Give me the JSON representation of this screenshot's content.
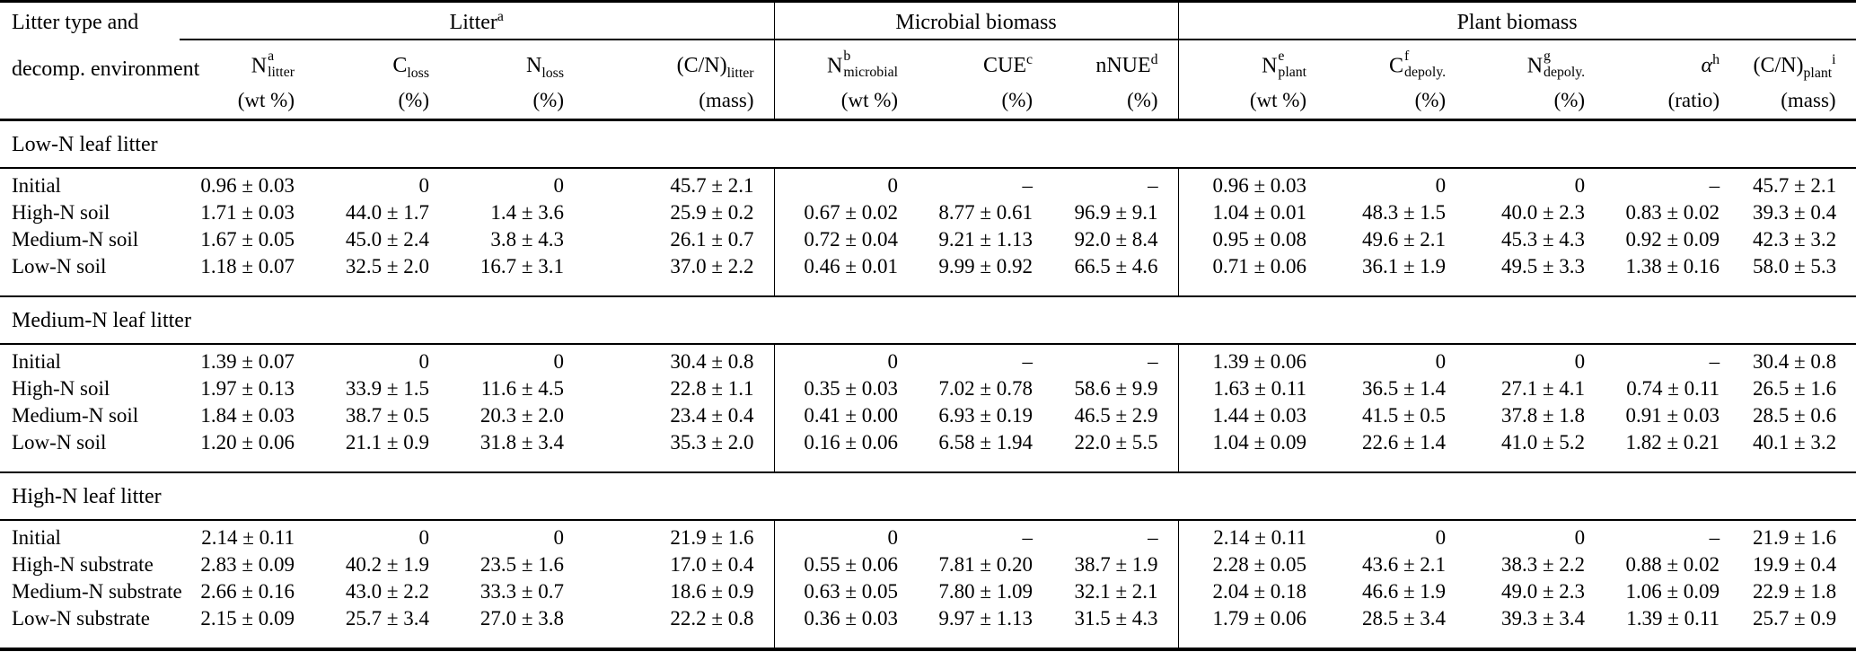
{
  "page": {
    "background": "#ffffff",
    "text_color": "#000000",
    "rule_color": "#000000"
  },
  "table": {
    "row_header": {
      "line1": "Litter type and",
      "line2": "decomp. environment"
    },
    "groups": [
      {
        "label": "Litter",
        "sup": "a"
      },
      {
        "label": "Microbial biomass",
        "sup": ""
      },
      {
        "label": "Plant biomass",
        "sup": ""
      }
    ],
    "columns": [
      {
        "base": "N",
        "sup": "a",
        "sub": "litter",
        "unit": "(wt %)"
      },
      {
        "base": "C",
        "sup": "",
        "sub": "loss",
        "unit": "(%)"
      },
      {
        "base": "N",
        "sup": "",
        "sub": "loss",
        "unit": "(%)"
      },
      {
        "base": "(C/N)",
        "sup": "",
        "sub": "litter",
        "unit": "(mass)"
      },
      {
        "base": "N",
        "sup": "b",
        "sub": "microbial",
        "unit": "(wt %)"
      },
      {
        "base": "CUE",
        "sup": "c",
        "sub": "",
        "unit": "(%)"
      },
      {
        "base": "nNUE",
        "sup": "d",
        "sub": "",
        "unit": "(%)"
      },
      {
        "base": "N",
        "sup": "e",
        "sub": "plant",
        "unit": "(wt %)"
      },
      {
        "base": "C",
        "sup": "f",
        "sub": "depoly.",
        "unit": "(%)"
      },
      {
        "base": "N",
        "sup": "g",
        "sub": "depoly.",
        "unit": "(%)"
      },
      {
        "base": "α",
        "sup": "h",
        "sub": "",
        "unit": "(ratio)"
      },
      {
        "base": "(C/N)",
        "sup": "i",
        "sub": "plant",
        "unit": "(mass)"
      }
    ],
    "sections": [
      {
        "title": "Low-N leaf litter",
        "rows": [
          {
            "label": "Initial",
            "values": [
              "0.96 ± 0.03",
              "0",
              "0",
              "45.7 ± 2.1",
              "0",
              "–",
              "–",
              "0.96 ± 0.03",
              "0",
              "0",
              "–",
              "45.7 ± 2.1"
            ]
          },
          {
            "label": "High-N soil",
            "values": [
              "1.71 ± 0.03",
              "44.0 ± 1.7",
              "1.4 ± 3.6",
              "25.9 ± 0.2",
              "0.67 ± 0.02",
              "8.77 ± 0.61",
              "96.9 ± 9.1",
              "1.04 ± 0.01",
              "48.3 ± 1.5",
              "40.0 ± 2.3",
              "0.83 ± 0.02",
              "39.3 ± 0.4"
            ]
          },
          {
            "label": "Medium-N soil",
            "values": [
              "1.67 ± 0.05",
              "45.0 ± 2.4",
              "3.8 ± 4.3",
              "26.1 ± 0.7",
              "0.72 ± 0.04",
              "9.21 ± 1.13",
              "92.0 ± 8.4",
              "0.95 ± 0.08",
              "49.6 ± 2.1",
              "45.3 ± 4.3",
              "0.92 ± 0.09",
              "42.3 ± 3.2"
            ]
          },
          {
            "label": "Low-N soil",
            "values": [
              "1.18 ± 0.07",
              "32.5 ± 2.0",
              "16.7 ± 3.1",
              "37.0 ± 2.2",
              "0.46 ± 0.01",
              "9.99 ± 0.92",
              "66.5 ± 4.6",
              "0.71 ± 0.06",
              "36.1 ± 1.9",
              "49.5 ± 3.3",
              "1.38 ± 0.16",
              "58.0 ± 5.3"
            ]
          }
        ]
      },
      {
        "title": "Medium-N leaf litter",
        "rows": [
          {
            "label": "Initial",
            "values": [
              "1.39 ± 0.07",
              "0",
              "0",
              "30.4 ± 0.8",
              "0",
              "–",
              "–",
              "1.39 ± 0.06",
              "0",
              "0",
              "–",
              "30.4 ± 0.8"
            ]
          },
          {
            "label": "High-N soil",
            "values": [
              "1.97 ± 0.13",
              "33.9 ± 1.5",
              "11.6 ± 4.5",
              "22.8 ± 1.1",
              "0.35 ± 0.03",
              "7.02 ± 0.78",
              "58.6 ± 9.9",
              "1.63 ± 0.11",
              "36.5 ± 1.4",
              "27.1 ± 4.1",
              "0.74 ± 0.11",
              "26.5 ± 1.6"
            ]
          },
          {
            "label": "Medium-N soil",
            "values": [
              "1.84 ± 0.03",
              "38.7 ± 0.5",
              "20.3 ± 2.0",
              "23.4 ± 0.4",
              "0.41 ± 0.00",
              "6.93 ± 0.19",
              "46.5 ± 2.9",
              "1.44 ± 0.03",
              "41.5 ± 0.5",
              "37.8 ± 1.8",
              "0.91 ± 0.03",
              "28.5 ± 0.6"
            ]
          },
          {
            "label": "Low-N soil",
            "values": [
              "1.20 ± 0.06",
              "21.1 ± 0.9",
              "31.8 ± 3.4",
              "35.3 ± 2.0",
              "0.16 ± 0.06",
              "6.58 ± 1.94",
              "22.0 ± 5.5",
              "1.04 ± 0.09",
              "22.6 ± 1.4",
              "41.0 ± 5.2",
              "1.82 ± 0.21",
              "40.1 ± 3.2"
            ]
          }
        ]
      },
      {
        "title": "High-N leaf litter",
        "rows": [
          {
            "label": "Initial",
            "values": [
              "2.14 ± 0.11",
              "0",
              "0",
              "21.9 ± 1.6",
              "0",
              "–",
              "–",
              "2.14 ± 0.11",
              "0",
              "0",
              "–",
              "21.9 ± 1.6"
            ]
          },
          {
            "label": "High-N substrate",
            "values": [
              "2.83 ± 0.09",
              "40.2 ± 1.9",
              "23.5 ± 1.6",
              "17.0 ± 0.4",
              "0.55 ± 0.06",
              "7.81 ± 0.20",
              "38.7 ± 1.9",
              "2.28 ± 0.05",
              "43.6 ± 2.1",
              "38.3 ± 2.2",
              "0.88 ± 0.02",
              "19.9 ± 0.4"
            ]
          },
          {
            "label": "Medium-N substrate",
            "values": [
              "2.66 ± 0.16",
              "43.0 ± 2.2",
              "33.3 ± 0.7",
              "18.6 ± 0.9",
              "0.63 ± 0.05",
              "7.80 ± 1.09",
              "32.1 ± 2.1",
              "2.04 ± 0.18",
              "46.6 ± 1.9",
              "49.0 ± 2.3",
              "1.06 ± 0.09",
              "22.9 ± 1.8"
            ]
          },
          {
            "label": "Low-N substrate",
            "values": [
              "2.15 ± 0.09",
              "25.7 ± 3.4",
              "27.0 ± 3.8",
              "22.2 ± 0.8",
              "0.36 ± 0.03",
              "9.97 ± 1.13",
              "31.5 ± 4.3",
              "1.79 ± 0.06",
              "28.5 ± 3.4",
              "39.3 ± 3.4",
              "1.39 ± 0.11",
              "25.7 ± 0.9"
            ]
          }
        ]
      }
    ]
  }
}
